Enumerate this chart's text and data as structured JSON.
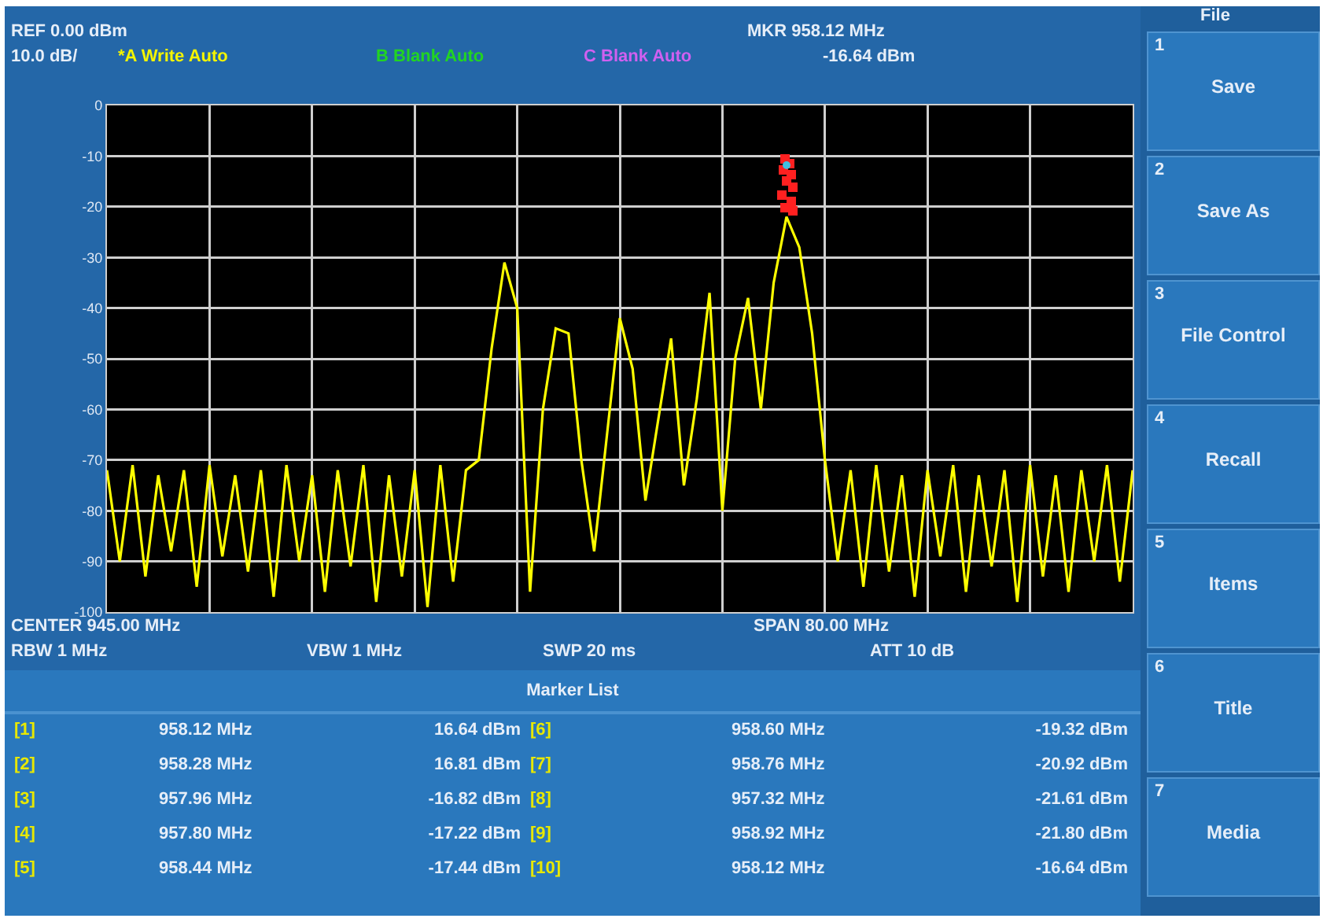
{
  "chart_data": {
    "type": "line",
    "categories": [
      null,
      null,
      null,
      null,
      null,
      null,
      null,
      null,
      null,
      null,
      null,
      null,
      null,
      null,
      null,
      null,
      null,
      null,
      null,
      null,
      null,
      null,
      null,
      null,
      null,
      null,
      null,
      null,
      null,
      null,
      null,
      null,
      null,
      null,
      null,
      null,
      null,
      null,
      null,
      null,
      null,
      null,
      null,
      null,
      null,
      null,
      null,
      null,
      null,
      null,
      null,
      null,
      null,
      null,
      null,
      null,
      null,
      null,
      null,
      null,
      null,
      null,
      null,
      null,
      null,
      null,
      null,
      null,
      null,
      null,
      null,
      null,
      null,
      null,
      null,
      null,
      null,
      null,
      null,
      null,
      null
    ],
    "ylim": [
      -100,
      0
    ],
    "yticks": [
      0,
      -10,
      -20,
      -30,
      -40,
      -50,
      -60,
      -70,
      -80,
      -90,
      -100
    ],
    "grid": true,
    "tick_labels": "y",
    "series": [
      {
        "color": "#ffff00",
        "values": [
          -72,
          -90,
          -71,
          -93,
          -73,
          -88,
          -72,
          -95,
          -71,
          -89,
          -73,
          -92,
          -72,
          -97,
          -71,
          -90,
          -73,
          -96,
          -72,
          -91,
          -71,
          -98,
          -73,
          -93,
          -72,
          -99,
          -71,
          -94,
          -72,
          -70,
          -48,
          -31,
          -40,
          -96,
          -60,
          -44,
          -45,
          -70,
          -88,
          -65,
          -42,
          -52,
          -78,
          -62,
          -46,
          -75,
          -58,
          -37,
          -80,
          -50,
          -38,
          -60,
          -35,
          -22,
          -28,
          -45,
          -70,
          -90,
          -72,
          -95,
          -71,
          -92,
          -73,
          -97,
          -72,
          -89,
          -71,
          -96,
          -73,
          -91,
          -72,
          -98,
          -71,
          -93,
          -73,
          -96,
          -72,
          -90,
          -71,
          -94,
          -72
        ]
      }
    ],
    "annotations": [
      "REF  0.00 dBm",
      "10.0 dB/",
      "*A Write Auto",
      "B Blank Auto",
      "C Blank Auto",
      "MKR 958.12 MHz",
      "-16.64 dBm",
      "CENTER 945.00 MHz",
      "SPAN 80.00 MHz",
      "RBW  1 MHz",
      "VBW  1 MHz",
      "SWP  20 ms",
      "ATT  10 dB",
      "Marker List",
      "[1]",
      "958.12 MHz",
      "16.64 dBm",
      "[2]",
      "958.28 MHz",
      "16.81 dBm",
      "[3]",
      "957.96 MHz",
      "-16.82 dBm",
      "[4]",
      "957.80 MHz",
      "-17.22 dBm",
      "[5]",
      "958.44 MHz",
      "-17.44 dBm",
      "[6]",
      "958.60 MHz",
      "-19.32 dBm",
      "[7]",
      "958.76 MHz",
      "-20.92 dBm",
      "[8]",
      "957.32 MHz",
      "-21.61 dBm",
      "[9]",
      "958.92 MHz",
      "-21.80 dBm",
      "[10]",
      "958.12 MHz",
      "-16.64 dBm",
      "File",
      "1",
      "Save",
      "2",
      "Save As",
      "3",
      "File Control",
      "4",
      "Recall",
      "5",
      "Items",
      "6",
      "Title",
      "7",
      "Media"
    ]
  }
}
